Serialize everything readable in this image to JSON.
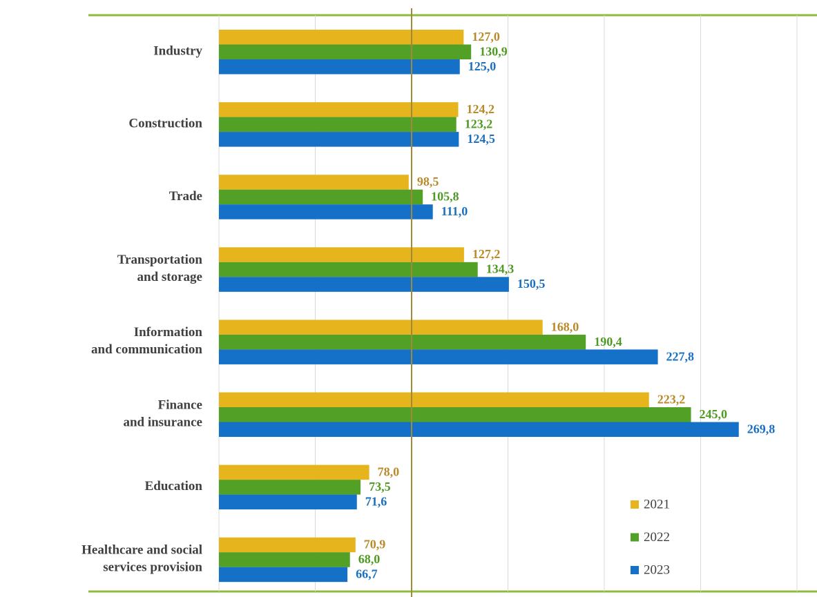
{
  "chart_data": {
    "type": "bar",
    "orientation": "horizontal",
    "categories": [
      "Industry",
      "Construction",
      "Trade",
      "Transportation\nand storage",
      "Information\nand communication",
      "Finance\nand insurance",
      "Education",
      "Healthcare and social\nservices provision"
    ],
    "series": [
      {
        "name": "2021",
        "color": "#e6b51e",
        "label_color": "#b88a28",
        "values": [
          127.0,
          124.2,
          98.5,
          127.2,
          168.0,
          223.2,
          78.0,
          70.9
        ],
        "value_labels": [
          "127,0",
          "124,2",
          "98,5",
          "127,2",
          "168,0",
          "223,2",
          "78,0",
          "70,9"
        ]
      },
      {
        "name": "2022",
        "color": "#52a025",
        "label_color": "#4f9a23",
        "values": [
          130.9,
          123.2,
          105.8,
          134.3,
          190.4,
          245.0,
          73.5,
          68.0
        ],
        "value_labels": [
          "130,9",
          "123,2",
          "105,8",
          "134,3",
          "190,4",
          "245,0",
          "73,5",
          "68,0"
        ]
      },
      {
        "name": "2023",
        "color": "#1570c8",
        "label_color": "#1a6fc0",
        "values": [
          125.0,
          124.5,
          111.0,
          150.5,
          227.8,
          269.8,
          71.6,
          66.7
        ],
        "value_labels": [
          "125,0",
          "124,5",
          "111,0",
          "150,5",
          "227,8",
          "269,8",
          "71,6",
          "66,7"
        ]
      }
    ],
    "xlim": [
      0,
      300
    ],
    "xticks": [
      0,
      50,
      100,
      150,
      200,
      250,
      300
    ],
    "grid": true,
    "reference_line": 100,
    "legend": "lower right"
  }
}
